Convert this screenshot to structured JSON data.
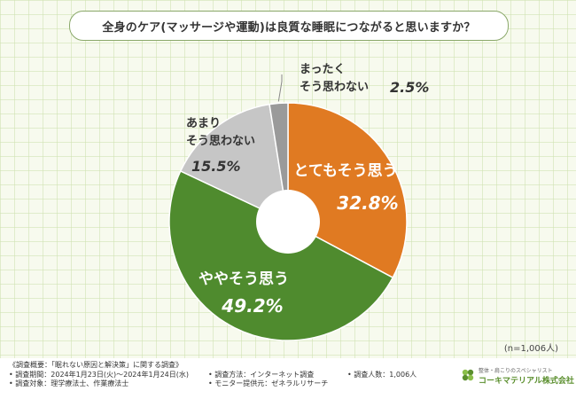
{
  "title": "全身のケア(マッサージや運動)は良質な睡眠につながると思いますか？",
  "n_label": "(n=1,006人)",
  "chart_data": {
    "type": "pie",
    "title": "全身のケア(マッサージや運動)は良質な睡眠につながると思いますか？",
    "unit": "%",
    "slices": [
      {
        "label": "とてもそう思う",
        "value": 32.8,
        "display": "32.8%",
        "color": "#e07a22"
      },
      {
        "label": "ややそう思う",
        "value": 49.2,
        "display": "49.2%",
        "color": "#4f8b2e"
      },
      {
        "label": "あまり そう思わない",
        "value": 15.5,
        "display": "15.5%",
        "color": "#c6c6c6"
      },
      {
        "label": "まったく そう思わない",
        "value": 2.5,
        "display": "2.5%",
        "color": "#9a9a9a"
      }
    ]
  },
  "footer": {
    "heading": "《調査概要：「眠れない原因と解決策」に関する調査》",
    "period": "• 調査期間：2024年1月23日(火)～2024年1月24日(水)",
    "target": "• 調査対象：理学療法士、作業療法士",
    "method": "• 調査方法：インターネット調査",
    "provider": "• モニター提供元：ゼネラルリサーチ",
    "count": "• 調査人数：1,006人"
  },
  "logo": {
    "tagline": "整体・肩こりのスペシャリスト",
    "name": "コーキマテリアル株式会社"
  }
}
